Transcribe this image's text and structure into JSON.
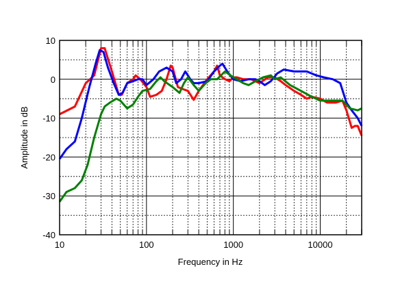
{
  "chart_data": {
    "type": "line",
    "title": "",
    "xlabel": "Frequency in Hz",
    "ylabel": "Amplitude in dB",
    "xscale": "log",
    "xlim": [
      10,
      30000
    ],
    "ylim": [
      -40,
      10
    ],
    "xticks": [
      {
        "v": 10,
        "label": "10"
      },
      {
        "v": 100,
        "label": "100"
      },
      {
        "v": 1000,
        "label": "1000"
      },
      {
        "v": 10000,
        "label": "10000"
      }
    ],
    "yticks": [
      {
        "v": 10,
        "label": "10"
      },
      {
        "v": 0,
        "label": "0"
      },
      {
        "v": -10,
        "label": "-10"
      },
      {
        "v": -20,
        "label": "-20"
      },
      {
        "v": -30,
        "label": "-30"
      },
      {
        "v": -40,
        "label": "-40"
      }
    ],
    "grid": true,
    "series": [
      {
        "name": "red",
        "color": "#ff0000",
        "points": [
          [
            10,
            -9
          ],
          [
            15,
            -7
          ],
          [
            20,
            -1
          ],
          [
            25,
            1
          ],
          [
            30,
            8
          ],
          [
            33,
            8
          ],
          [
            40,
            2
          ],
          [
            48,
            -4
          ],
          [
            52,
            -4
          ],
          [
            60,
            -1
          ],
          [
            70,
            0
          ],
          [
            75,
            1
          ],
          [
            85,
            0
          ],
          [
            100,
            -2
          ],
          [
            110,
            -4.5
          ],
          [
            130,
            -4
          ],
          [
            150,
            -3
          ],
          [
            170,
            0
          ],
          [
            190,
            3.5
          ],
          [
            200,
            3
          ],
          [
            230,
            -2
          ],
          [
            260,
            -2.5
          ],
          [
            300,
            -3
          ],
          [
            350,
            -5.3
          ],
          [
            400,
            -3
          ],
          [
            500,
            0
          ],
          [
            600,
            2
          ],
          [
            650,
            3.5
          ],
          [
            700,
            1
          ],
          [
            800,
            0
          ],
          [
            900,
            -0.5
          ],
          [
            1000,
            0.5
          ],
          [
            1100,
            0.5
          ],
          [
            1300,
            0
          ],
          [
            1600,
            0
          ],
          [
            2000,
            -1
          ],
          [
            2500,
            0.5
          ],
          [
            3000,
            0.5
          ],
          [
            3500,
            -0.5
          ],
          [
            4000,
            -1.5
          ],
          [
            5000,
            -3
          ],
          [
            6000,
            -4
          ],
          [
            7000,
            -5
          ],
          [
            8000,
            -4.5
          ],
          [
            10000,
            -5
          ],
          [
            12000,
            -6
          ],
          [
            15000,
            -6
          ],
          [
            18000,
            -5.5
          ],
          [
            20000,
            -8
          ],
          [
            23000,
            -12.5
          ],
          [
            25000,
            -12
          ],
          [
            27000,
            -12
          ],
          [
            30000,
            -14.5
          ]
        ]
      },
      {
        "name": "blue",
        "color": "#0000ff",
        "points": [
          [
            10,
            -20.5
          ],
          [
            12,
            -18
          ],
          [
            15,
            -16
          ],
          [
            18,
            -10
          ],
          [
            22,
            -2
          ],
          [
            26,
            4
          ],
          [
            29,
            7.5
          ],
          [
            32,
            7
          ],
          [
            36,
            3
          ],
          [
            42,
            -1
          ],
          [
            48,
            -4
          ],
          [
            53,
            -3.5
          ],
          [
            60,
            -1
          ],
          [
            70,
            -0.5
          ],
          [
            80,
            0
          ],
          [
            90,
            0
          ],
          [
            100,
            -1.5
          ],
          [
            120,
            0
          ],
          [
            140,
            2
          ],
          [
            170,
            3
          ],
          [
            200,
            2
          ],
          [
            220,
            -1
          ],
          [
            250,
            0
          ],
          [
            280,
            2
          ],
          [
            320,
            0
          ],
          [
            350,
            -1
          ],
          [
            400,
            -1
          ],
          [
            500,
            -0.5
          ],
          [
            600,
            2
          ],
          [
            700,
            3.5
          ],
          [
            750,
            4
          ],
          [
            850,
            2
          ],
          [
            1000,
            0
          ],
          [
            1200,
            -0.5
          ],
          [
            1500,
            0
          ],
          [
            1800,
            0
          ],
          [
            2000,
            -0.5
          ],
          [
            2300,
            -1.5
          ],
          [
            2700,
            -0.5
          ],
          [
            3200,
            1.5
          ],
          [
            3800,
            2.5
          ],
          [
            5000,
            2
          ],
          [
            7000,
            2
          ],
          [
            9000,
            1
          ],
          [
            11000,
            0.5
          ],
          [
            14000,
            0
          ],
          [
            17000,
            -1
          ],
          [
            20000,
            -6
          ],
          [
            23000,
            -8
          ],
          [
            27000,
            -10
          ],
          [
            30000,
            -12
          ]
        ]
      },
      {
        "name": "green",
        "color": "#008000",
        "points": [
          [
            10,
            -31.5
          ],
          [
            12,
            -29
          ],
          [
            15,
            -28
          ],
          [
            18,
            -26
          ],
          [
            21,
            -22
          ],
          [
            25,
            -15
          ],
          [
            30,
            -9
          ],
          [
            33,
            -7
          ],
          [
            38,
            -6
          ],
          [
            45,
            -5
          ],
          [
            50,
            -5.5
          ],
          [
            60,
            -7.5
          ],
          [
            70,
            -6.5
          ],
          [
            80,
            -4.5
          ],
          [
            90,
            -3
          ],
          [
            110,
            -2.5
          ],
          [
            130,
            -0.5
          ],
          [
            145,
            0.5
          ],
          [
            160,
            -0.5
          ],
          [
            200,
            -2
          ],
          [
            240,
            -3.5
          ],
          [
            270,
            -1
          ],
          [
            300,
            0.5
          ],
          [
            350,
            -1.5
          ],
          [
            400,
            -3
          ],
          [
            480,
            -1
          ],
          [
            550,
            0
          ],
          [
            650,
            0
          ],
          [
            800,
            2
          ],
          [
            1000,
            0.5
          ],
          [
            1300,
            -1
          ],
          [
            1500,
            -1.5
          ],
          [
            1800,
            -0.5
          ],
          [
            2200,
            0.5
          ],
          [
            2700,
            1
          ],
          [
            3000,
            0
          ],
          [
            3500,
            0.5
          ],
          [
            4500,
            -1.5
          ],
          [
            6000,
            -3
          ],
          [
            8000,
            -4.5
          ],
          [
            10000,
            -5.5
          ],
          [
            12000,
            -5.5
          ],
          [
            15000,
            -5.5
          ],
          [
            18000,
            -5.5
          ],
          [
            22000,
            -7.5
          ],
          [
            27000,
            -8
          ],
          [
            30000,
            -7.5
          ]
        ]
      }
    ]
  }
}
